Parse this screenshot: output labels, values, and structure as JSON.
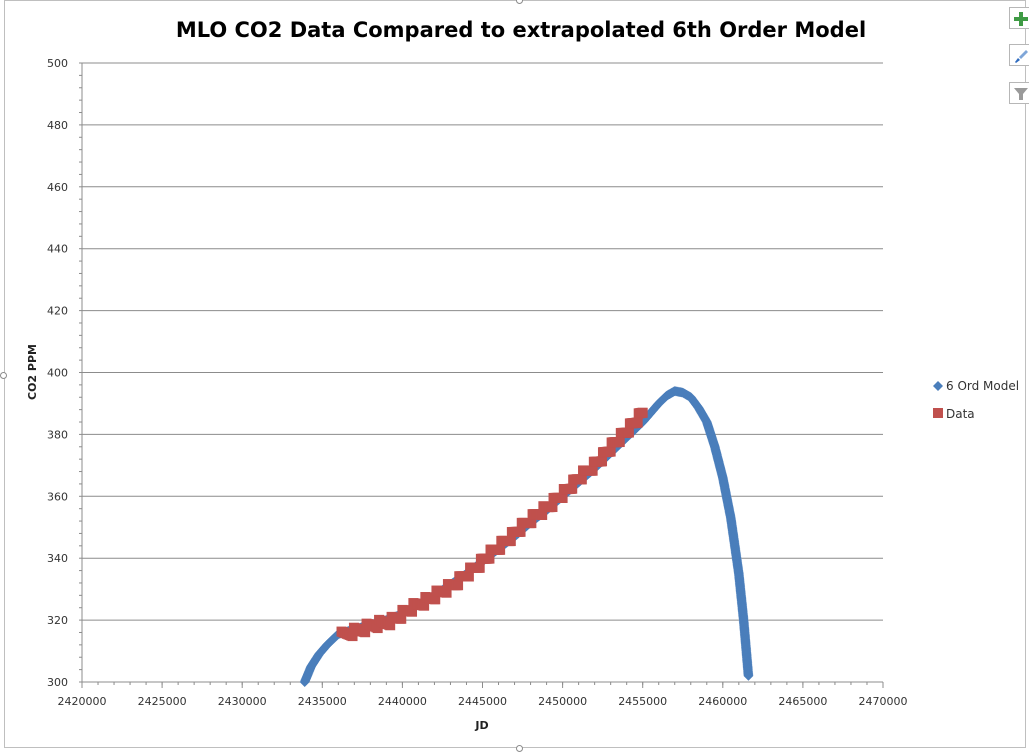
{
  "chart_data": {
    "type": "scatter",
    "title": "MLO CO2 Data Compared to extrapolated 6th Order Model",
    "xlabel": "JD",
    "ylabel": "CO2 PPM",
    "xlim": [
      2420000,
      2470000
    ],
    "ylim": [
      300,
      500
    ],
    "x_ticks": [
      2420000,
      2425000,
      2430000,
      2435000,
      2440000,
      2445000,
      2450000,
      2455000,
      2460000,
      2465000,
      2470000
    ],
    "y_ticks": [
      300,
      320,
      340,
      360,
      380,
      400,
      420,
      440,
      460,
      480,
      500
    ],
    "legend_position": "right",
    "series": [
      {
        "name": "6 Ord Model",
        "marker": "diamond",
        "color": "#4a7ebb",
        "points": [
          [
            2433900,
            300
          ],
          [
            2434300,
            305
          ],
          [
            2434800,
            309
          ],
          [
            2435300,
            312
          ],
          [
            2436000,
            315.5
          ],
          [
            2437000,
            317
          ],
          [
            2438000,
            318.5
          ],
          [
            2439000,
            320
          ],
          [
            2440000,
            322
          ],
          [
            2441000,
            325
          ],
          [
            2442000,
            328
          ],
          [
            2443000,
            331.5
          ],
          [
            2444000,
            335
          ],
          [
            2445000,
            339
          ],
          [
            2446000,
            343
          ],
          [
            2447000,
            347
          ],
          [
            2448000,
            351.5
          ],
          [
            2449000,
            355.5
          ],
          [
            2450000,
            360
          ],
          [
            2451000,
            364.5
          ],
          [
            2452000,
            369
          ],
          [
            2453000,
            374
          ],
          [
            2454000,
            379
          ],
          [
            2455000,
            384
          ],
          [
            2455500,
            387
          ],
          [
            2456000,
            390
          ],
          [
            2456500,
            392.5
          ],
          [
            2457000,
            394
          ],
          [
            2457500,
            393.5
          ],
          [
            2458000,
            392
          ],
          [
            2458500,
            388.5
          ],
          [
            2459000,
            384
          ],
          [
            2459500,
            376
          ],
          [
            2460000,
            366
          ],
          [
            2460500,
            353
          ],
          [
            2461000,
            335
          ],
          [
            2461300,
            320
          ],
          [
            2461600,
            302
          ]
        ]
      },
      {
        "name": "Data",
        "marker": "square",
        "color": "#c0504d",
        "points": [
          [
            2436200,
            315
          ],
          [
            2436800,
            316
          ],
          [
            2437500,
            317
          ],
          [
            2438200,
            318.5
          ],
          [
            2438800,
            319
          ],
          [
            2439500,
            320
          ],
          [
            2440000,
            322
          ],
          [
            2440600,
            324
          ],
          [
            2441200,
            325.5
          ],
          [
            2441900,
            327.5
          ],
          [
            2442500,
            329.5
          ],
          [
            2443100,
            331
          ],
          [
            2443700,
            333.5
          ],
          [
            2444300,
            336
          ],
          [
            2444900,
            338.5
          ],
          [
            2445500,
            341.5
          ],
          [
            2446100,
            344
          ],
          [
            2446700,
            346.5
          ],
          [
            2447300,
            349.5
          ],
          [
            2447900,
            352
          ],
          [
            2448500,
            354.5
          ],
          [
            2449100,
            356.5
          ],
          [
            2449700,
            359.5
          ],
          [
            2450300,
            362
          ],
          [
            2450900,
            365.5
          ],
          [
            2451500,
            368
          ],
          [
            2452100,
            370.5
          ],
          [
            2452700,
            374
          ],
          [
            2453300,
            377.5
          ],
          [
            2453900,
            380.5
          ],
          [
            2454500,
            384
          ],
          [
            2455000,
            387
          ]
        ]
      }
    ]
  }
}
